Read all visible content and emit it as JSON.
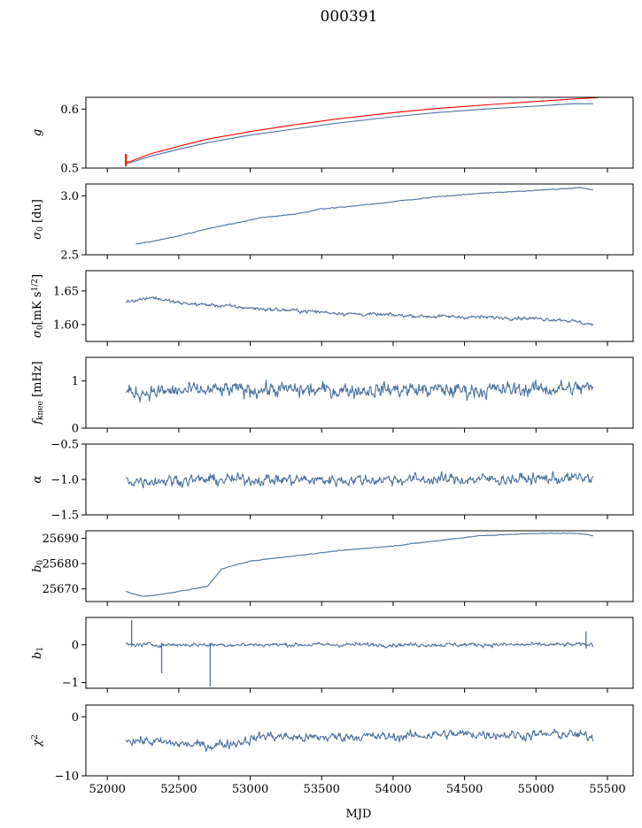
{
  "figure": {
    "title": "000391",
    "xlabel": "MJD"
  },
  "colors": {
    "primary": "#4c72a0",
    "highlight": "#ff0000",
    "frame": "#000000",
    "background": "#ffffff"
  },
  "chart_data": [
    {
      "type": "line",
      "id": "g",
      "ylabel": "g",
      "ylim": [
        0.5,
        0.62
      ],
      "yticks": [
        0.5,
        0.6
      ],
      "ytick_labels": [
        "0.5",
        "0.6"
      ],
      "series": [
        {
          "name": "g_fit",
          "color": "#4c72a0",
          "x": [
            52130,
            52160,
            52300,
            52500,
            52700,
            53000,
            53300,
            53600,
            54000,
            54300,
            54700,
            55000,
            55250,
            55400
          ],
          "y": [
            0.508,
            0.509,
            0.52,
            0.532,
            0.543,
            0.556,
            0.566,
            0.576,
            0.587,
            0.594,
            0.601,
            0.605,
            0.609,
            0.609
          ]
        },
        {
          "name": "g_data",
          "color": "#ff0000",
          "x": [
            52130,
            52160,
            52300,
            52500,
            52700,
            53000,
            53300,
            53600,
            54000,
            54300,
            54700,
            55000,
            55250,
            55400,
            55450
          ],
          "y": [
            0.51,
            0.511,
            0.524,
            0.537,
            0.549,
            0.562,
            0.573,
            0.583,
            0.594,
            0.601,
            0.608,
            0.613,
            0.617,
            0.619,
            0.62
          ]
        }
      ],
      "spikes": [
        {
          "x": 52130,
          "y0": 0.503,
          "y1": 0.524,
          "color": "#ff0000"
        }
      ]
    },
    {
      "type": "line",
      "id": "sigma0_du",
      "ylabel": "σ₀ [du]",
      "ylim": [
        2.5,
        3.1
      ],
      "yticks": [
        2.5,
        3.0
      ],
      "ytick_labels": [
        "2.5",
        "3.0"
      ],
      "series": [
        {
          "name": "sigma0_du",
          "color": "#4c72a0",
          "x": [
            52200,
            52300,
            52500,
            52700,
            52900,
            53100,
            53300,
            53500,
            53700,
            54000,
            54300,
            54600,
            54900,
            55200,
            55300,
            55400
          ],
          "y": [
            2.59,
            2.61,
            2.66,
            2.72,
            2.77,
            2.82,
            2.84,
            2.89,
            2.91,
            2.95,
            2.99,
            3.02,
            3.04,
            3.06,
            3.07,
            3.05
          ]
        }
      ],
      "noise": 0.004
    },
    {
      "type": "line",
      "id": "sigma0_mk",
      "ylabel": "σ₀[mK s^1/2]",
      "ylim": [
        1.575,
        1.68
      ],
      "yticks": [
        1.6,
        1.65
      ],
      "ytick_labels": [
        "1.60",
        "1.65"
      ],
      "series": [
        {
          "name": "sigma0_mk",
          "color": "#4c72a0",
          "x": [
            52130,
            52250,
            52300,
            52500,
            52800,
            53100,
            53400,
            53700,
            54000,
            54300,
            54600,
            54900,
            55200,
            55400
          ],
          "y": [
            1.635,
            1.638,
            1.641,
            1.632,
            1.628,
            1.623,
            1.62,
            1.616,
            1.614,
            1.612,
            1.611,
            1.61,
            1.607,
            1.6
          ]
        }
      ],
      "noise": 0.003
    },
    {
      "type": "line",
      "id": "fknee",
      "ylabel": "f_knee [mHz]",
      "ylim": [
        0,
        1.5
      ],
      "yticks": [
        0,
        1
      ],
      "ytick_labels": [
        "0",
        "1"
      ],
      "series": [
        {
          "name": "fknee",
          "color": "#4c72a0",
          "x": [
            52130,
            52500,
            53000,
            53500,
            54000,
            54500,
            55000,
            55400
          ],
          "y": [
            0.75,
            0.78,
            0.82,
            0.8,
            0.82,
            0.8,
            0.83,
            0.85
          ]
        }
      ],
      "noise": 0.18
    },
    {
      "type": "line",
      "id": "alpha",
      "ylabel": "α",
      "ylim": [
        -1.5,
        -0.5
      ],
      "yticks": [
        -1.5,
        -1.0,
        -0.5
      ],
      "ytick_labels": [
        "−1.5",
        "−1.0",
        "−0.5"
      ],
      "series": [
        {
          "name": "alpha",
          "color": "#4c72a0",
          "x": [
            52130,
            52500,
            53000,
            53500,
            54000,
            54500,
            55000,
            55400
          ],
          "y": [
            -1.02,
            -1.01,
            -1.0,
            -1.01,
            -1.0,
            -1.0,
            -0.99,
            -0.98
          ]
        }
      ],
      "noise": 0.09
    },
    {
      "type": "line",
      "id": "b0",
      "ylabel": "b₀",
      "ylim": [
        25665,
        25693
      ],
      "yticks": [
        25670,
        25680,
        25690
      ],
      "ytick_labels": [
        "25670",
        "25680",
        "25690"
      ],
      "series": [
        {
          "name": "b0",
          "color": "#4c72a0",
          "x": [
            52130,
            52180,
            52250,
            52400,
            52600,
            52700,
            52760,
            52800,
            53000,
            53300,
            53600,
            54000,
            54300,
            54600,
            55000,
            55300,
            55400
          ],
          "y": [
            25669,
            25668,
            25667,
            25668,
            25670,
            25671,
            25675,
            25678,
            25681,
            25683,
            25685,
            25687,
            25689,
            25691,
            25692,
            25692,
            25691
          ]
        }
      ],
      "noise": 0.15
    },
    {
      "type": "line",
      "id": "b1",
      "ylabel": "b₁",
      "ylim": [
        -1.15,
        0.72
      ],
      "yticks": [
        -1,
        0
      ],
      "ytick_labels": [
        "−1",
        "0"
      ],
      "series": [
        {
          "name": "b1",
          "color": "#4c72a0",
          "x": [
            52130,
            55400
          ],
          "y": [
            0.0,
            0.0
          ]
        }
      ],
      "noise": 0.06,
      "spikes": [
        {
          "x": 52170,
          "y0": -0.05,
          "y1": 0.65,
          "color": "#4c72a0"
        },
        {
          "x": 52380,
          "y0": 0.05,
          "y1": -0.75,
          "color": "#4c72a0"
        },
        {
          "x": 52720,
          "y0": 0.05,
          "y1": -1.1,
          "color": "#4c72a0"
        },
        {
          "x": 55350,
          "y0": -0.1,
          "y1": 0.35,
          "color": "#4c72a0"
        }
      ]
    },
    {
      "type": "line",
      "id": "chi2",
      "ylabel": "χ²",
      "ylim": [
        -10,
        2
      ],
      "yticks": [
        -10,
        0
      ],
      "ytick_labels": [
        "−10",
        "0"
      ],
      "series": [
        {
          "name": "chi2",
          "color": "#4c72a0",
          "x": [
            52130,
            52300,
            52500,
            52700,
            52900,
            53100,
            53400,
            53700,
            54000,
            54300,
            54600,
            54900,
            55200,
            55400
          ],
          "y": [
            -3.8,
            -4.2,
            -4.6,
            -4.9,
            -4.4,
            -3.2,
            -3.6,
            -3.3,
            -3.4,
            -3.0,
            -2.9,
            -3.1,
            -2.9,
            -3.4
          ]
        }
      ],
      "noise": 0.9
    }
  ],
  "x_axis": {
    "xlim": [
      51850,
      55680
    ],
    "xticks": [
      52000,
      52500,
      53000,
      53500,
      54000,
      54500,
      55000,
      55500
    ],
    "xtick_labels": [
      "52000",
      "52500",
      "53000",
      "53500",
      "54000",
      "54500",
      "55000",
      "55500"
    ]
  }
}
